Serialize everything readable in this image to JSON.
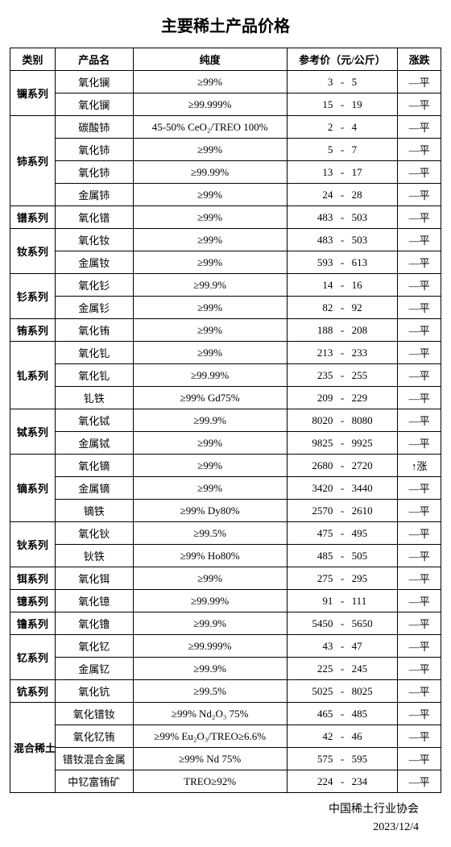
{
  "title": "主要稀土产品价格",
  "columns": [
    "类别",
    "产品名",
    "纯度",
    "参考价（元/公斤）",
    "涨跌"
  ],
  "trend_flat": "—平",
  "trend_up": "↑涨",
  "groups": [
    {
      "cat": "镧系列",
      "rows": [
        {
          "name": "氧化镧",
          "purity": "≥99%",
          "lo": "3",
          "hi": "5",
          "trend": "flat"
        },
        {
          "name": "氧化镧",
          "purity": "≥99.999%",
          "lo": "15",
          "hi": "19",
          "trend": "flat"
        }
      ]
    },
    {
      "cat": "铈系列",
      "rows": [
        {
          "name": "碳酸铈",
          "purity": "45-50% CeO₂/TREO 100%",
          "lo": "2",
          "hi": "4",
          "trend": "flat"
        },
        {
          "name": "氧化铈",
          "purity": "≥99%",
          "lo": "5",
          "hi": "7",
          "trend": "flat"
        },
        {
          "name": "氧化铈",
          "purity": "≥99.99%",
          "lo": "13",
          "hi": "17",
          "trend": "flat"
        },
        {
          "name": "金属铈",
          "purity": "≥99%",
          "lo": "24",
          "hi": "28",
          "trend": "flat"
        }
      ]
    },
    {
      "cat": "镨系列",
      "rows": [
        {
          "name": "氧化镨",
          "purity": "≥99%",
          "lo": "483",
          "hi": "503",
          "trend": "flat"
        }
      ]
    },
    {
      "cat": "钕系列",
      "rows": [
        {
          "name": "氧化钕",
          "purity": "≥99%",
          "lo": "483",
          "hi": "503",
          "trend": "flat"
        },
        {
          "name": "金属钕",
          "purity": "≥99%",
          "lo": "593",
          "hi": "613",
          "trend": "flat"
        }
      ]
    },
    {
      "cat": "钐系列",
      "rows": [
        {
          "name": "氧化钐",
          "purity": "≥99.9%",
          "lo": "14",
          "hi": "16",
          "trend": "flat"
        },
        {
          "name": "金属钐",
          "purity": "≥99%",
          "lo": "82",
          "hi": "92",
          "trend": "flat"
        }
      ]
    },
    {
      "cat": "铕系列",
      "rows": [
        {
          "name": "氧化铕",
          "purity": "≥99%",
          "lo": "188",
          "hi": "208",
          "trend": "flat"
        }
      ]
    },
    {
      "cat": "钆系列",
      "rows": [
        {
          "name": "氧化钆",
          "purity": "≥99%",
          "lo": "213",
          "hi": "233",
          "trend": "flat"
        },
        {
          "name": "氧化钆",
          "purity": "≥99.99%",
          "lo": "235",
          "hi": "255",
          "trend": "flat"
        },
        {
          "name": "钆铁",
          "purity": "≥99% Gd75%",
          "lo": "209",
          "hi": "229",
          "trend": "flat"
        }
      ]
    },
    {
      "cat": "铽系列",
      "rows": [
        {
          "name": "氧化铽",
          "purity": "≥99.9%",
          "lo": "8020",
          "hi": "8080",
          "trend": "flat"
        },
        {
          "name": "金属铽",
          "purity": "≥99%",
          "lo": "9825",
          "hi": "9925",
          "trend": "flat"
        }
      ]
    },
    {
      "cat": "镝系列",
      "rows": [
        {
          "name": "氧化镝",
          "purity": "≥99%",
          "lo": "2680",
          "hi": "2720",
          "trend": "up"
        },
        {
          "name": "金属镝",
          "purity": "≥99%",
          "lo": "3420",
          "hi": "3440",
          "trend": "flat"
        },
        {
          "name": "镝铁",
          "purity": "≥99% Dy80%",
          "lo": "2570",
          "hi": "2610",
          "trend": "flat"
        }
      ]
    },
    {
      "cat": "钬系列",
      "rows": [
        {
          "name": "氧化钬",
          "purity": "≥99.5%",
          "lo": "475",
          "hi": "495",
          "trend": "flat"
        },
        {
          "name": "钬铁",
          "purity": "≥99% Ho80%",
          "lo": "485",
          "hi": "505",
          "trend": "flat"
        }
      ]
    },
    {
      "cat": "铒系列",
      "rows": [
        {
          "name": "氧化铒",
          "purity": "≥99%",
          "lo": "275",
          "hi": "295",
          "trend": "flat"
        }
      ]
    },
    {
      "cat": "镱系列",
      "rows": [
        {
          "name": "氧化镱",
          "purity": "≥99.99%",
          "lo": "91",
          "hi": "111",
          "trend": "flat"
        }
      ]
    },
    {
      "cat": "镥系列",
      "rows": [
        {
          "name": "氧化镥",
          "purity": "≥99.9%",
          "lo": "5450",
          "hi": "5650",
          "trend": "flat"
        }
      ]
    },
    {
      "cat": "钇系列",
      "rows": [
        {
          "name": "氧化钇",
          "purity": "≥99.999%",
          "lo": "43",
          "hi": "47",
          "trend": "flat"
        },
        {
          "name": "金属钇",
          "purity": "≥99.9%",
          "lo": "225",
          "hi": "245",
          "trend": "flat"
        }
      ]
    },
    {
      "cat": "钪系列",
      "rows": [
        {
          "name": "氧化钪",
          "purity": "≥99.5%",
          "lo": "5025",
          "hi": "8025",
          "trend": "flat"
        }
      ]
    },
    {
      "cat": "混合稀土",
      "rows": [
        {
          "name": "氧化镨钕",
          "purity": "≥99%  Nd₂O₃  75%",
          "lo": "465",
          "hi": "485",
          "trend": "flat"
        },
        {
          "name": "氧化钇铕",
          "purity": "≥99% Eu₂O₃/TREO≥6.6%",
          "lo": "42",
          "hi": "46",
          "trend": "flat"
        },
        {
          "name": "镨钕混合金属",
          "purity": "≥99% Nd 75%",
          "lo": "575",
          "hi": "595",
          "trend": "flat"
        },
        {
          "name": "中钇富铕矿",
          "purity": "TREO≥92%",
          "lo": "224",
          "hi": "234",
          "trend": "flat"
        }
      ]
    }
  ],
  "footer_org": "中国稀土行业协会",
  "footer_date": "2023/12/4"
}
